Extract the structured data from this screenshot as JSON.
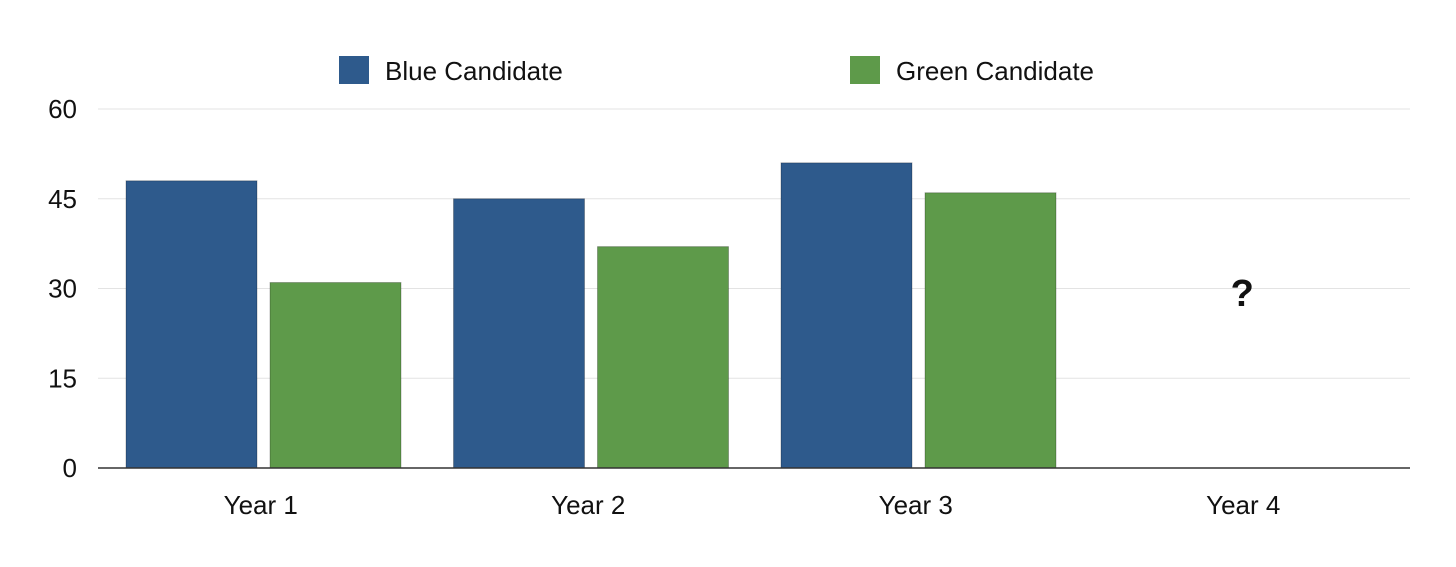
{
  "chart_data": {
    "type": "bar",
    "categories": [
      "Year 1",
      "Year 2",
      "Year 3",
      "Year 4"
    ],
    "series": [
      {
        "name": "Blue Candidate",
        "color": "#2e5a8c",
        "values": [
          48,
          45,
          51,
          null
        ]
      },
      {
        "name": "Green Candidate",
        "color": "#5e9a4a",
        "values": [
          31,
          37,
          46,
          null
        ]
      }
    ],
    "ylim": [
      0,
      60
    ],
    "yticks": [
      0,
      15,
      30,
      45,
      60
    ],
    "ytick_labels": [
      "0",
      "15",
      "30",
      "45",
      "60"
    ],
    "grid": true,
    "legend_position": "top",
    "annotations": [
      {
        "category": "Year 4",
        "text": "?"
      }
    ],
    "title": "",
    "xlabel": "",
    "ylabel": ""
  }
}
